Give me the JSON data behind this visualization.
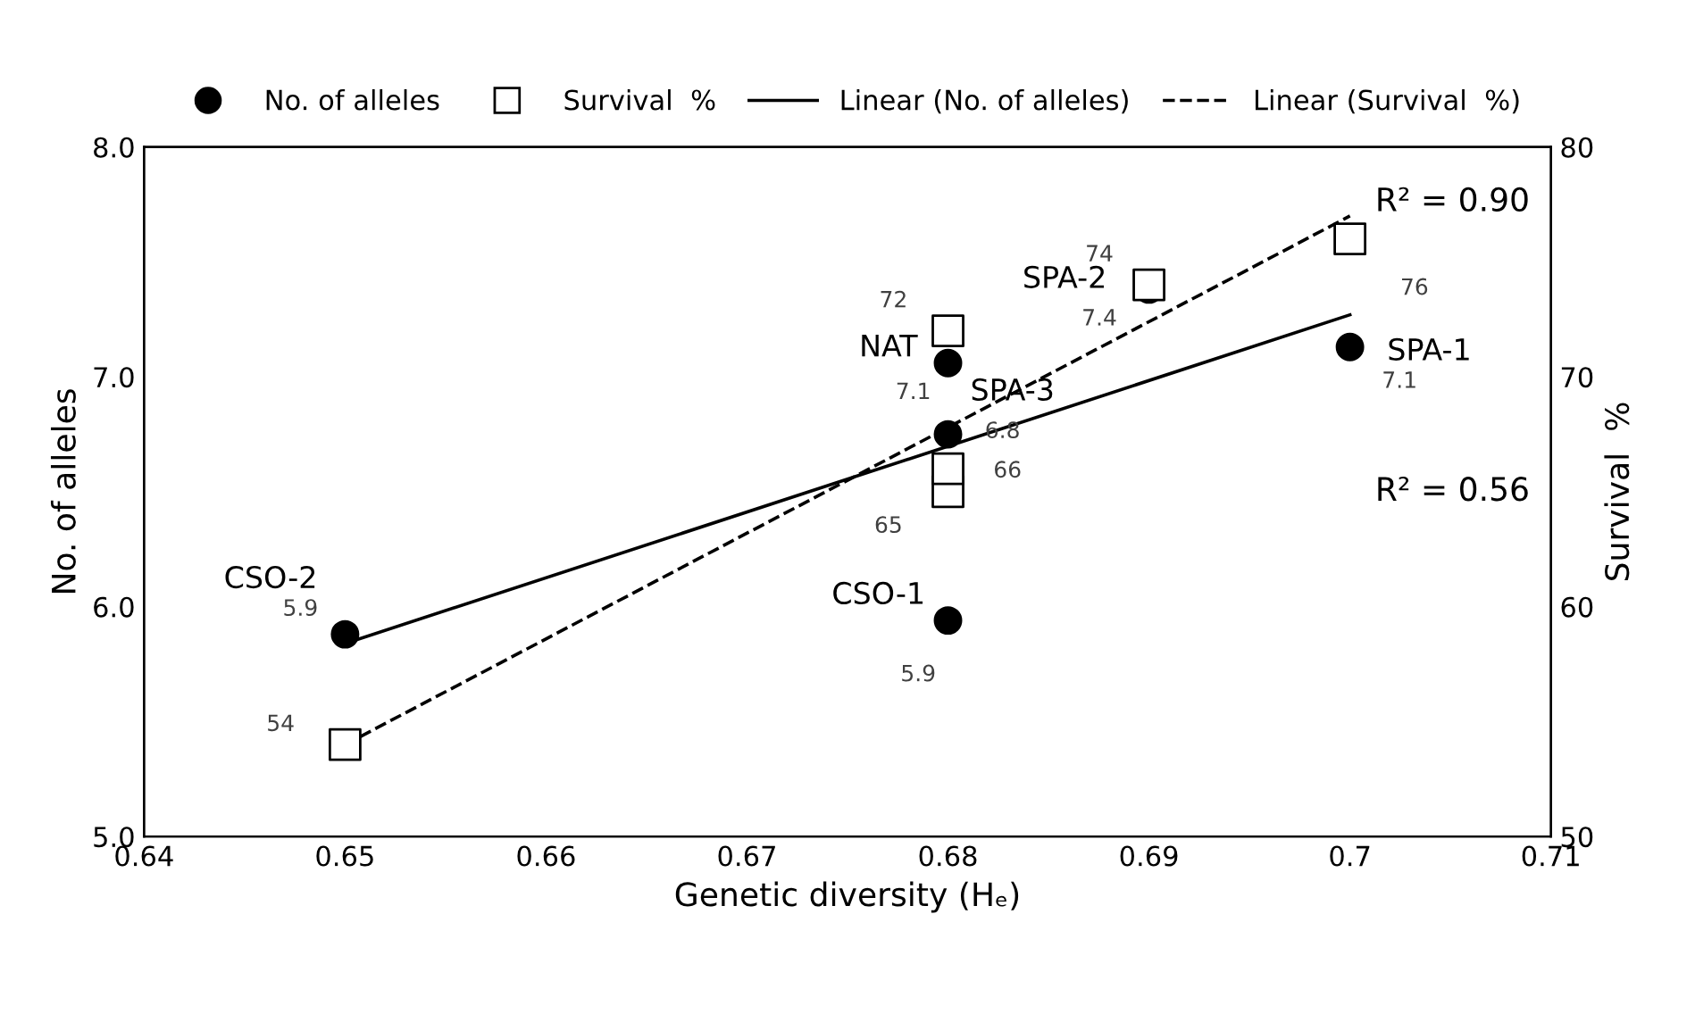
{
  "chart_data": {
    "type": "scatter",
    "xlabel": "Genetic diversity (Hₑ)",
    "ylabel": "No. of alleles",
    "y2label": "Survival  %",
    "xlim": [
      0.64,
      0.71
    ],
    "xticks": [
      0.64,
      0.65,
      0.66,
      0.67,
      0.68,
      0.69,
      {
        "value": 0.7,
        "label": "0.7"
      },
      0.71
    ],
    "ylim": [
      5.0,
      8.0
    ],
    "yticks": [
      {
        "value": 5.0,
        "label": "5.0"
      },
      {
        "value": 6.0,
        "label": "6.0"
      },
      {
        "value": 7.0,
        "label": "7.0"
      },
      {
        "value": 8.0,
        "label": "8.0"
      }
    ],
    "y2lim": [
      50,
      80
    ],
    "y2ticks": [
      50,
      60,
      70,
      80
    ],
    "grid": false,
    "legend": "top",
    "series": [
      {
        "name": "No. of alleles",
        "marker": "circle",
        "color": "#000000",
        "x": [
          0.65,
          0.68,
          0.68,
          0.68,
          0.69,
          0.7
        ],
        "values": [
          5.88,
          5.94,
          6.75,
          7.06,
          7.38,
          7.13
        ],
        "value_labels": [
          "5.9",
          "5.9",
          "6.8",
          "7.1",
          "7.4",
          "7.1"
        ]
      },
      {
        "name": "Survival  %",
        "marker": "square",
        "axis": "y2",
        "color": "#000000",
        "x": [
          0.65,
          0.68,
          0.68,
          0.68,
          0.69,
          0.7
        ],
        "values": [
          54,
          65,
          66,
          72,
          74,
          76
        ],
        "value_labels": [
          "54",
          "65",
          "66",
          "72",
          "74",
          "76"
        ]
      },
      {
        "name": "Linear (No. of alleles)",
        "type": "line",
        "line_style": "solid",
        "color": "#000000",
        "x": [
          0.65,
          0.7
        ],
        "values": [
          5.84,
          7.27
        ]
      },
      {
        "name": "Linear (Survival  %)",
        "type": "line",
        "line_style": "dashed",
        "axis": "y2",
        "color": "#000000",
        "x": [
          0.65,
          0.7
        ],
        "values": [
          54,
          77
        ]
      }
    ],
    "annotations": [
      {
        "text": "CSO-2",
        "x": 0.65,
        "y": 5.88
      },
      {
        "text": "CSO-1",
        "x": 0.68,
        "y": 5.94
      },
      {
        "text": "SPA-3",
        "x": 0.68,
        "y": 6.75
      },
      {
        "text": "NAT",
        "x": 0.68,
        "y": 7.06
      },
      {
        "text": "SPA-2",
        "x": 0.69,
        "y": 7.38
      },
      {
        "text": "SPA-1",
        "x": 0.7,
        "y": 7.13
      },
      "R² = 0.90",
      "R² = 0.56"
    ]
  }
}
